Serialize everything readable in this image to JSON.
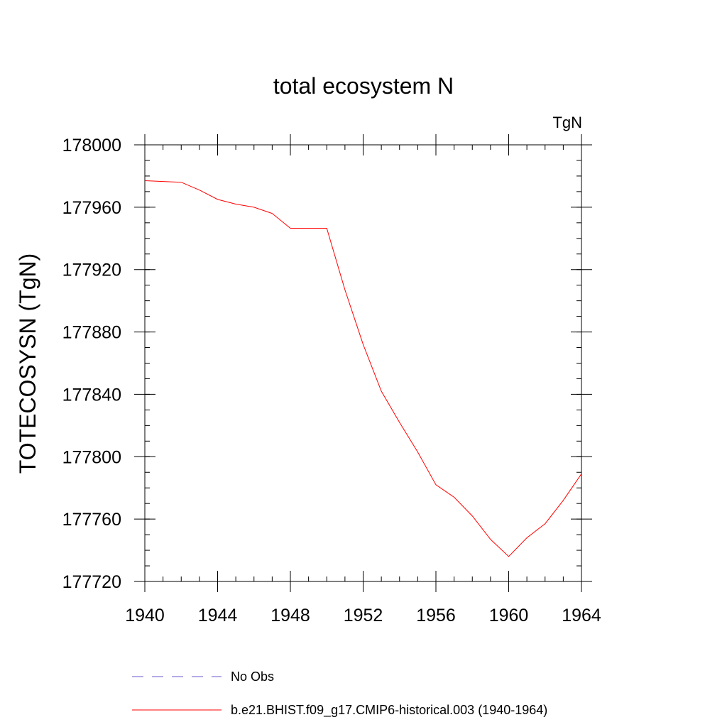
{
  "chart_data": {
    "type": "line",
    "title": "total ecosystem N",
    "units_label": "TgN",
    "ylabel": "TOTECOSYSN  (TgN)",
    "xlabel": "",
    "xlim": [
      1940,
      1964
    ],
    "ylim": [
      177720,
      178000
    ],
    "x_ticks": [
      1940,
      1944,
      1948,
      1952,
      1956,
      1960,
      1964
    ],
    "y_ticks": [
      177720,
      177760,
      177800,
      177840,
      177880,
      177920,
      177960,
      178000
    ],
    "x_minor_step": 1,
    "y_minor_step": 10,
    "grid": false,
    "legend_position": "bottom",
    "series": [
      {
        "name": "b.e21.BHIST.f09_g17.CMIP6-historical.003 (1940-1964)",
        "color": "#ff0000",
        "style": "solid",
        "x": [
          1940,
          1941,
          1942,
          1943,
          1944,
          1945,
          1946,
          1947,
          1948,
          1949,
          1950,
          1951,
          1952,
          1953,
          1954,
          1955,
          1956,
          1957,
          1958,
          1959,
          1960,
          1961,
          1962,
          1963,
          1964
        ],
        "values": [
          177977,
          177976.5,
          177976,
          177971,
          177965,
          177962,
          177960,
          177956,
          177946.5,
          177946.5,
          177946.5,
          177907,
          177872,
          177842,
          177822,
          177803,
          177782,
          177774,
          177762,
          177747,
          177736,
          177748,
          177757,
          177772,
          177789
        ]
      }
    ],
    "legend": [
      {
        "label": "No Obs",
        "color": "#6a5acd",
        "style": "dashed"
      },
      {
        "label": "b.e21.BHIST.f09_g17.CMIP6-historical.003 (1940-1964)",
        "color": "#ff0000",
        "style": "solid"
      }
    ]
  }
}
